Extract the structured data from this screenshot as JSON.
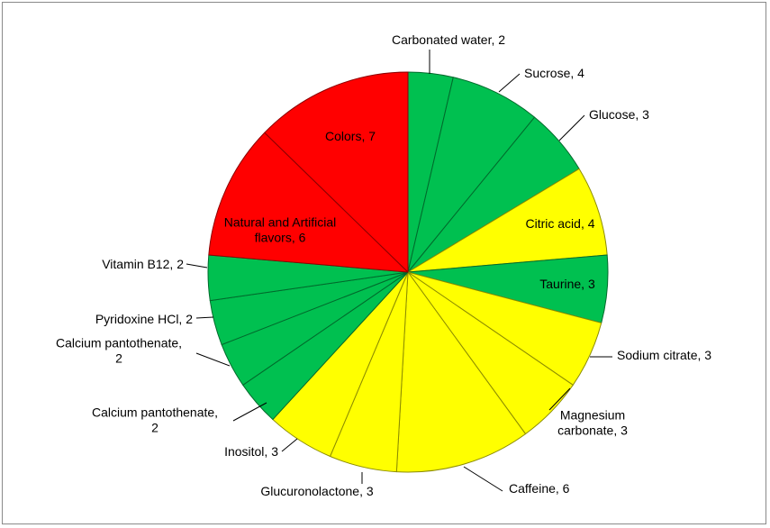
{
  "chart_data": {
    "type": "pie",
    "title": "",
    "slices": [
      {
        "label": "Carbonated water, 2",
        "value": 2,
        "color": "#00C050"
      },
      {
        "label": "Sucrose, 4",
        "value": 4,
        "color": "#00C050"
      },
      {
        "label": "Glucose, 3",
        "value": 3,
        "color": "#00C050"
      },
      {
        "label": "Citric acid, 4",
        "value": 4,
        "color": "#FFFF00"
      },
      {
        "label": "Taurine, 3",
        "value": 3,
        "color": "#00C050"
      },
      {
        "label": "Sodium citrate, 3",
        "value": 3,
        "color": "#FFFF00"
      },
      {
        "label": "Magnesium carbonate, 3",
        "value": 3,
        "color": "#FFFF00"
      },
      {
        "label": "Caffeine, 6",
        "value": 6,
        "color": "#FFFF00"
      },
      {
        "label": "Glucuronolactone, 3",
        "value": 3,
        "color": "#FFFF00"
      },
      {
        "label": "Inositol, 3",
        "value": 3,
        "color": "#FFFF00"
      },
      {
        "label": "Calcium pantothenate, 2",
        "value": 2,
        "color": "#00C050"
      },
      {
        "label": "Calcium pantothenate, 2",
        "value": 2,
        "color": "#00C050"
      },
      {
        "label": "Pyridoxine HCl, 2",
        "value": 2,
        "color": "#00C050"
      },
      {
        "label": "Vitamin B12, 2",
        "value": 2,
        "color": "#00C050"
      },
      {
        "label": "Natural and Artificial flavors, 6",
        "value": 6,
        "color": "#FF0000"
      },
      {
        "label": "Colors, 7",
        "value": 7,
        "color": "#FF0000"
      }
    ],
    "legend": "none"
  }
}
